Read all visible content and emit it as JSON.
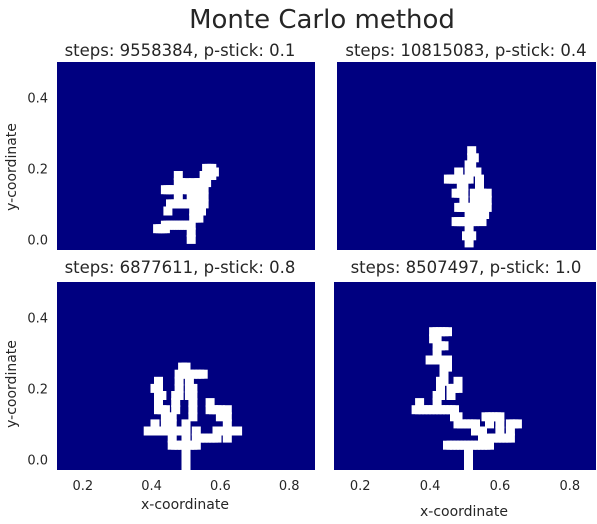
{
  "title": "Monte Carlo method",
  "colors": {
    "background": "#000080",
    "cluster": "#ffffff",
    "text": "#262626"
  },
  "chart_data": [
    {
      "type": "heatmap",
      "title": "steps: 9558384, p-stick: 0.1",
      "xlabel": "",
      "ylabel": "y-coordinate",
      "xlim": [
        0.0,
        1.0
      ],
      "ylim": [
        -0.03,
        0.5
      ],
      "xticks": [],
      "yticks": [
        0.0,
        0.2,
        0.4
      ],
      "grid": false,
      "cells": [
        [
          0.52,
          0.0
        ],
        [
          0.52,
          0.02
        ],
        [
          0.52,
          0.04
        ],
        [
          0.51,
          0.04
        ],
        [
          0.5,
          0.04
        ],
        [
          0.49,
          0.04
        ],
        [
          0.48,
          0.04
        ],
        [
          0.47,
          0.04
        ],
        [
          0.46,
          0.04
        ],
        [
          0.45,
          0.04
        ],
        [
          0.44,
          0.04
        ],
        [
          0.43,
          0.04
        ],
        [
          0.42,
          0.04
        ],
        [
          0.42,
          0.03
        ],
        [
          0.41,
          0.03
        ],
        [
          0.4,
          0.03
        ],
        [
          0.39,
          0.03
        ],
        [
          0.53,
          0.06
        ],
        [
          0.54,
          0.06
        ],
        [
          0.55,
          0.06
        ],
        [
          0.53,
          0.08
        ],
        [
          0.55,
          0.08
        ],
        [
          0.56,
          0.08
        ],
        [
          0.53,
          0.1
        ],
        [
          0.54,
          0.1
        ],
        [
          0.55,
          0.1
        ],
        [
          0.56,
          0.1
        ],
        [
          0.57,
          0.1
        ],
        [
          0.51,
          0.1
        ],
        [
          0.5,
          0.1
        ],
        [
          0.49,
          0.1
        ],
        [
          0.48,
          0.1
        ],
        [
          0.47,
          0.1
        ],
        [
          0.46,
          0.1
        ],
        [
          0.45,
          0.1
        ],
        [
          0.44,
          0.1
        ],
        [
          0.43,
          0.08
        ],
        [
          0.47,
          0.12
        ],
        [
          0.52,
          0.12
        ],
        [
          0.53,
          0.12
        ],
        [
          0.56,
          0.12
        ],
        [
          0.57,
          0.12
        ],
        [
          0.5,
          0.14
        ],
        [
          0.51,
          0.14
        ],
        [
          0.52,
          0.14
        ],
        [
          0.53,
          0.14
        ],
        [
          0.47,
          0.14
        ],
        [
          0.45,
          0.14
        ],
        [
          0.44,
          0.14
        ],
        [
          0.43,
          0.14
        ],
        [
          0.42,
          0.14
        ],
        [
          0.55,
          0.14
        ],
        [
          0.56,
          0.14
        ],
        [
          0.57,
          0.14
        ],
        [
          0.53,
          0.16
        ],
        [
          0.5,
          0.16
        ],
        [
          0.55,
          0.16
        ],
        [
          0.56,
          0.16
        ],
        [
          0.57,
          0.16
        ],
        [
          0.58,
          0.16
        ],
        [
          0.47,
          0.16
        ],
        [
          0.47,
          0.18
        ],
        [
          0.48,
          0.16
        ],
        [
          0.57,
          0.18
        ],
        [
          0.59,
          0.18
        ],
        [
          0.6,
          0.18
        ],
        [
          0.6,
          0.2
        ],
        [
          0.59,
          0.2
        ],
        [
          0.58,
          0.2
        ],
        [
          0.61,
          0.19
        ]
      ]
    },
    {
      "type": "heatmap",
      "title": "steps: 10815083, p-stick: 0.4",
      "xlabel": "",
      "ylabel": "",
      "xlim": [
        0.0,
        1.0
      ],
      "ylim": [
        -0.03,
        0.5
      ],
      "xticks": [],
      "yticks": [],
      "grid": false,
      "cells": [
        [
          0.51,
          -0.01
        ],
        [
          0.51,
          0.01
        ],
        [
          0.5,
          0.01
        ],
        [
          0.52,
          0.01
        ],
        [
          0.51,
          0.03
        ],
        [
          0.51,
          0.05
        ],
        [
          0.5,
          0.05
        ],
        [
          0.49,
          0.05
        ],
        [
          0.48,
          0.05
        ],
        [
          0.47,
          0.05
        ],
        [
          0.46,
          0.05
        ],
        [
          0.52,
          0.05
        ],
        [
          0.53,
          0.05
        ],
        [
          0.51,
          0.07
        ],
        [
          0.51,
          0.09
        ],
        [
          0.5,
          0.09
        ],
        [
          0.49,
          0.09
        ],
        [
          0.48,
          0.09
        ],
        [
          0.47,
          0.09
        ],
        [
          0.52,
          0.09
        ],
        [
          0.53,
          0.07
        ],
        [
          0.53,
          0.09
        ],
        [
          0.55,
          0.07
        ],
        [
          0.55,
          0.09
        ],
        [
          0.56,
          0.05
        ],
        [
          0.56,
          0.07
        ],
        [
          0.57,
          0.07
        ],
        [
          0.57,
          0.09
        ],
        [
          0.58,
          0.09
        ],
        [
          0.58,
          0.11
        ],
        [
          0.58,
          0.13
        ],
        [
          0.49,
          0.11
        ],
        [
          0.49,
          0.13
        ],
        [
          0.48,
          0.13
        ],
        [
          0.47,
          0.13
        ],
        [
          0.46,
          0.13
        ],
        [
          0.49,
          0.15
        ],
        [
          0.48,
          0.15
        ],
        [
          0.47,
          0.17
        ],
        [
          0.47,
          0.19
        ],
        [
          0.46,
          0.17
        ],
        [
          0.45,
          0.17
        ],
        [
          0.44,
          0.17
        ],
        [
          0.43,
          0.17
        ],
        [
          0.5,
          0.17
        ],
        [
          0.51,
          0.17
        ],
        [
          0.51,
          0.19
        ],
        [
          0.51,
          0.21
        ],
        [
          0.52,
          0.21
        ],
        [
          0.52,
          0.23
        ],
        [
          0.53,
          0.23
        ],
        [
          0.52,
          0.25
        ],
        [
          0.52,
          0.19
        ],
        [
          0.53,
          0.19
        ],
        [
          0.54,
          0.19
        ],
        [
          0.55,
          0.17
        ],
        [
          0.55,
          0.15
        ],
        [
          0.55,
          0.13
        ],
        [
          0.56,
          0.13
        ],
        [
          0.56,
          0.11
        ],
        [
          0.53,
          0.11
        ],
        [
          0.53,
          0.13
        ]
      ]
    },
    {
      "type": "heatmap",
      "title": "steps: 6877611, p-stick: 0.8",
      "xlabel": "x-coordinate",
      "ylabel": "y-coordinate",
      "xlim": [
        0.125,
        0.875
      ],
      "ylim": [
        -0.03,
        0.5
      ],
      "xticks": [
        0.2,
        0.4,
        0.6,
        0.8
      ],
      "yticks": [
        0.0,
        0.2,
        0.4
      ],
      "grid": false,
      "cells": [
        [
          0.5,
          -0.02
        ],
        [
          0.5,
          0.0
        ],
        [
          0.5,
          0.02
        ],
        [
          0.5,
          0.04
        ],
        [
          0.49,
          0.04
        ],
        [
          0.48,
          0.04
        ],
        [
          0.47,
          0.04
        ],
        [
          0.46,
          0.04
        ],
        [
          0.46,
          0.06
        ],
        [
          0.51,
          0.04
        ],
        [
          0.52,
          0.04
        ],
        [
          0.53,
          0.04
        ],
        [
          0.53,
          0.06
        ],
        [
          0.53,
          0.08
        ],
        [
          0.54,
          0.06
        ],
        [
          0.55,
          0.06
        ],
        [
          0.56,
          0.06
        ],
        [
          0.57,
          0.06
        ],
        [
          0.58,
          0.06
        ],
        [
          0.59,
          0.06
        ],
        [
          0.59,
          0.08
        ],
        [
          0.6,
          0.08
        ],
        [
          0.61,
          0.08
        ],
        [
          0.62,
          0.06
        ],
        [
          0.62,
          0.08
        ],
        [
          0.63,
          0.08
        ],
        [
          0.64,
          0.08
        ],
        [
          0.65,
          0.08
        ],
        [
          0.62,
          0.1
        ],
        [
          0.62,
          0.12
        ],
        [
          0.62,
          0.14
        ],
        [
          0.6,
          0.12
        ],
        [
          0.6,
          0.14
        ],
        [
          0.59,
          0.14
        ],
        [
          0.58,
          0.14
        ],
        [
          0.57,
          0.14
        ],
        [
          0.57,
          0.16
        ],
        [
          0.5,
          0.06
        ],
        [
          0.5,
          0.08
        ],
        [
          0.5,
          0.1
        ],
        [
          0.49,
          0.08
        ],
        [
          0.48,
          0.08
        ],
        [
          0.47,
          0.08
        ],
        [
          0.46,
          0.08
        ],
        [
          0.45,
          0.08
        ],
        [
          0.44,
          0.08
        ],
        [
          0.43,
          0.08
        ],
        [
          0.42,
          0.08
        ],
        [
          0.41,
          0.08
        ],
        [
          0.41,
          0.1
        ],
        [
          0.4,
          0.08
        ],
        [
          0.39,
          0.08
        ],
        [
          0.44,
          0.1
        ],
        [
          0.44,
          0.12
        ],
        [
          0.44,
          0.14
        ],
        [
          0.43,
          0.14
        ],
        [
          0.42,
          0.14
        ],
        [
          0.42,
          0.16
        ],
        [
          0.43,
          0.18
        ],
        [
          0.42,
          0.18
        ],
        [
          0.42,
          0.2
        ],
        [
          0.41,
          0.2
        ],
        [
          0.42,
          0.22
        ],
        [
          0.46,
          0.1
        ],
        [
          0.46,
          0.12
        ],
        [
          0.47,
          0.14
        ],
        [
          0.47,
          0.16
        ],
        [
          0.47,
          0.18
        ],
        [
          0.48,
          0.18
        ],
        [
          0.48,
          0.2
        ],
        [
          0.48,
          0.22
        ],
        [
          0.48,
          0.24
        ],
        [
          0.49,
          0.24
        ],
        [
          0.49,
          0.26
        ],
        [
          0.5,
          0.26
        ],
        [
          0.5,
          0.24
        ],
        [
          0.51,
          0.24
        ],
        [
          0.52,
          0.24
        ],
        [
          0.53,
          0.24
        ],
        [
          0.54,
          0.24
        ],
        [
          0.55,
          0.24
        ],
        [
          0.52,
          0.12
        ],
        [
          0.52,
          0.14
        ],
        [
          0.52,
          0.16
        ],
        [
          0.52,
          0.18
        ],
        [
          0.51,
          0.18
        ],
        [
          0.51,
          0.2
        ],
        [
          0.51,
          0.22
        ],
        [
          0.52,
          0.2
        ]
      ]
    },
    {
      "type": "heatmap",
      "title": "steps: 8507497, p-stick: 1.0",
      "xlabel": "x-coordinate",
      "ylabel": "",
      "xlim": [
        0.125,
        0.875
      ],
      "ylim": [
        -0.03,
        0.5
      ],
      "xticks": [
        0.2,
        0.4,
        0.6,
        0.8
      ],
      "yticks": [],
      "grid": false,
      "cells": [
        [
          0.51,
          -0.02
        ],
        [
          0.51,
          0.0
        ],
        [
          0.51,
          0.02
        ],
        [
          0.51,
          0.04
        ],
        [
          0.5,
          0.04
        ],
        [
          0.49,
          0.04
        ],
        [
          0.48,
          0.04
        ],
        [
          0.47,
          0.04
        ],
        [
          0.46,
          0.04
        ],
        [
          0.45,
          0.04
        ],
        [
          0.52,
          0.04
        ],
        [
          0.53,
          0.04
        ],
        [
          0.54,
          0.04
        ],
        [
          0.55,
          0.04
        ],
        [
          0.56,
          0.04
        ],
        [
          0.57,
          0.04
        ],
        [
          0.57,
          0.06
        ],
        [
          0.58,
          0.06
        ],
        [
          0.59,
          0.06
        ],
        [
          0.6,
          0.06
        ],
        [
          0.61,
          0.06
        ],
        [
          0.62,
          0.06
        ],
        [
          0.63,
          0.06
        ],
        [
          0.63,
          0.08
        ],
        [
          0.63,
          0.1
        ],
        [
          0.64,
          0.1
        ],
        [
          0.65,
          0.1
        ],
        [
          0.6,
          0.08
        ],
        [
          0.6,
          0.1
        ],
        [
          0.6,
          0.12
        ],
        [
          0.59,
          0.12
        ],
        [
          0.58,
          0.12
        ],
        [
          0.57,
          0.12
        ],
        [
          0.56,
          0.12
        ],
        [
          0.57,
          0.1
        ],
        [
          0.55,
          0.06
        ],
        [
          0.55,
          0.08
        ],
        [
          0.54,
          0.08
        ],
        [
          0.53,
          0.08
        ],
        [
          0.53,
          0.1
        ],
        [
          0.52,
          0.1
        ],
        [
          0.51,
          0.1
        ],
        [
          0.5,
          0.1
        ],
        [
          0.49,
          0.1
        ],
        [
          0.48,
          0.1
        ],
        [
          0.48,
          0.12
        ],
        [
          0.47,
          0.12
        ],
        [
          0.47,
          0.14
        ],
        [
          0.46,
          0.14
        ],
        [
          0.45,
          0.14
        ],
        [
          0.44,
          0.14
        ],
        [
          0.43,
          0.14
        ],
        [
          0.42,
          0.14
        ],
        [
          0.41,
          0.14
        ],
        [
          0.4,
          0.14
        ],
        [
          0.39,
          0.14
        ],
        [
          0.38,
          0.14
        ],
        [
          0.37,
          0.14
        ],
        [
          0.36,
          0.14
        ],
        [
          0.37,
          0.16
        ],
        [
          0.42,
          0.16
        ],
        [
          0.42,
          0.18
        ],
        [
          0.43,
          0.18
        ],
        [
          0.43,
          0.2
        ],
        [
          0.43,
          0.22
        ],
        [
          0.44,
          0.22
        ],
        [
          0.44,
          0.24
        ],
        [
          0.44,
          0.26
        ],
        [
          0.45,
          0.26
        ],
        [
          0.45,
          0.28
        ],
        [
          0.44,
          0.28
        ],
        [
          0.43,
          0.28
        ],
        [
          0.42,
          0.28
        ],
        [
          0.41,
          0.28
        ],
        [
          0.4,
          0.28
        ],
        [
          0.42,
          0.3
        ],
        [
          0.42,
          0.32
        ],
        [
          0.43,
          0.32
        ],
        [
          0.44,
          0.32
        ],
        [
          0.42,
          0.34
        ],
        [
          0.41,
          0.34
        ],
        [
          0.41,
          0.36
        ],
        [
          0.42,
          0.36
        ],
        [
          0.43,
          0.36
        ],
        [
          0.44,
          0.36
        ],
        [
          0.45,
          0.36
        ],
        [
          0.46,
          0.18
        ],
        [
          0.46,
          0.2
        ],
        [
          0.47,
          0.2
        ],
        [
          0.48,
          0.2
        ],
        [
          0.48,
          0.22
        ]
      ]
    }
  ]
}
